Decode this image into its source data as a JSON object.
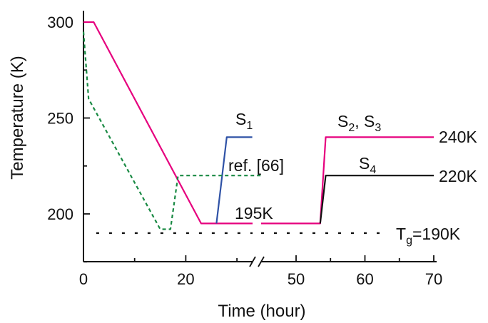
{
  "chart_data": {
    "type": "line",
    "xlabel": "Time (hour)",
    "ylabel": "Temperature (K)",
    "xlim": [
      0,
      70
    ],
    "ylim": [
      170,
      310
    ],
    "x_axis_break": [
      37,
      46
    ],
    "x_ticks": [
      {
        "value": 0,
        "label": "0"
      },
      {
        "value": 20,
        "label": "20"
      },
      {
        "value": 50,
        "label": "50"
      },
      {
        "value": 60,
        "label": "60"
      },
      {
        "value": 70,
        "label": "70"
      }
    ],
    "y_ticks": [
      {
        "value": 200,
        "label": "200"
      },
      {
        "value": 250,
        "label": "250"
      },
      {
        "value": 300,
        "label": "300"
      }
    ],
    "grid": false,
    "series": [
      {
        "key": "magenta",
        "color": "#e6007e",
        "dash": "",
        "points": [
          [
            0,
            300
          ],
          [
            2,
            300
          ],
          [
            23,
            195
          ],
          [
            46,
            195
          ],
          [
            53.5,
            195
          ],
          [
            54.3,
            240
          ],
          [
            70,
            240
          ]
        ]
      },
      {
        "key": "blue",
        "color": "#2f52a6",
        "dash": "",
        "points": [
          [
            26,
            195
          ],
          [
            28,
            240
          ],
          [
            33,
            240
          ]
        ],
        "extra_segments": [
          [
            [
              36,
              240
            ],
            [
              44,
              240
            ]
          ]
        ]
      },
      {
        "key": "black",
        "color": "#111111",
        "dash": "",
        "points": [
          [
            53.5,
            195
          ],
          [
            54.3,
            220
          ],
          [
            70,
            220
          ]
        ]
      },
      {
        "key": "green",
        "color": "#1a8a44",
        "dash": "5,4",
        "points": [
          [
            0,
            295
          ],
          [
            1,
            260
          ],
          [
            15,
            192
          ],
          [
            17,
            192
          ],
          [
            18.5,
            220
          ],
          [
            35,
            220
          ]
        ]
      },
      {
        "key": "tg",
        "color": "#111111",
        "dash": "4,14",
        "points": [
          [
            2.5,
            190
          ],
          [
            63,
            190
          ]
        ]
      }
    ],
    "annotations": [
      {
        "key": "s1",
        "main": "S",
        "sub": "1",
        "rest": "",
        "x": 30,
        "y": 248
      },
      {
        "key": "s23",
        "main": "S",
        "sub": "2",
        "rest": ", S",
        "sub2": "3",
        "x": 58,
        "y": 248
      },
      {
        "key": "s4",
        "main": "S",
        "sub": "4",
        "rest": "",
        "x": 59,
        "y": 225
      },
      {
        "key": "ref",
        "text": "ref. [66]",
        "x": 20.5,
        "y": 223
      },
      {
        "key": "k195",
        "text": "195K",
        "x": 33,
        "y": 198
      },
      {
        "key": "k240",
        "text": "240K",
        "x": 70,
        "y": 240
      },
      {
        "key": "k220",
        "text": "220K",
        "x": 70,
        "y": 220
      },
      {
        "key": "tg",
        "main": "T",
        "sub": "g",
        "rest": "=190K",
        "x": 64,
        "y": 190
      }
    ]
  }
}
